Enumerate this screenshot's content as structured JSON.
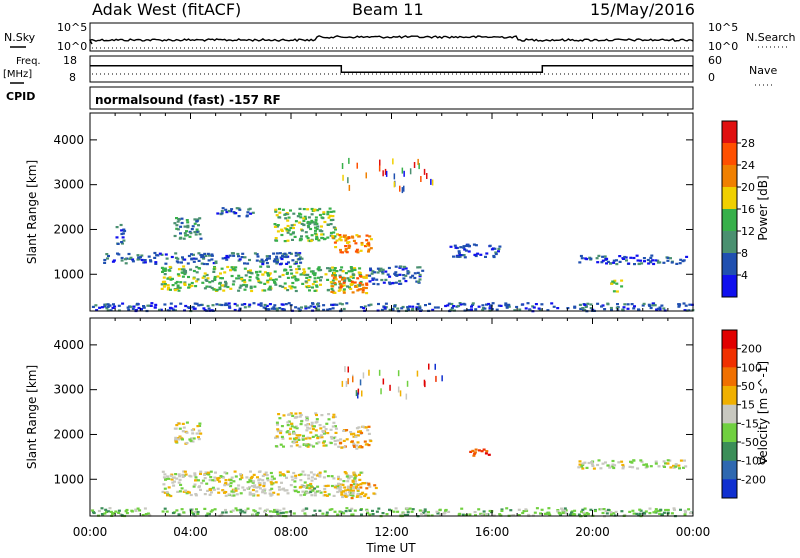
{
  "header": {
    "station": "Adak West (fitACF)",
    "beam": "Beam 11",
    "date": "15/May/2016"
  },
  "panel_labels": {
    "nsky": "N.Sky",
    "nsearch": "N.Search",
    "freq": "Freq.",
    "freq_unit": "[MHz]",
    "nave": "Nave",
    "cpid": "CPID",
    "cpid_value": "normalsound (fast) -157 RF"
  },
  "noise_panel": {
    "left_ticks": [
      "10^5",
      "10^0"
    ],
    "right_ticks": [
      "10^5",
      "10^0"
    ]
  },
  "freq_panel": {
    "left_ticks": [
      "18",
      "8"
    ],
    "right_ticks": [
      "60",
      "0"
    ],
    "freq_steps": [
      {
        "t_start": 0,
        "t_end": 10,
        "mhz": 13.5
      },
      {
        "t_start": 10,
        "t_end": 18,
        "mhz": 10.5
      },
      {
        "t_start": 18,
        "t_end": 24,
        "mhz": 13.5
      }
    ]
  },
  "chart_data": [
    {
      "type": "heatmap",
      "name": "power",
      "ylabel": "Slant Range [km]",
      "xlabel": "Time UT",
      "yticks": [
        "1000",
        "2000",
        "3000",
        "4000"
      ],
      "xticks": [
        "00:00",
        "04:00",
        "08:00",
        "12:00",
        "16:00",
        "20:00",
        "00:00"
      ],
      "xlim": [
        0,
        24
      ],
      "ylim": [
        180,
        4600
      ],
      "colorbar": {
        "label": "Power [dB]",
        "ticks": [
          "4",
          "8",
          "12",
          "16",
          "20",
          "24",
          "28"
        ],
        "colors": [
          "#1010ee",
          "#2050b0",
          "#4a9070",
          "#37b04a",
          "#f0d000",
          "#f08000",
          "#ff5000",
          "#e01010"
        ]
      },
      "regions": [
        {
          "t0": 1.0,
          "t1": 1.4,
          "r0": 1700,
          "r1": 2150,
          "level": 1
        },
        {
          "t0": 3.3,
          "t1": 4.4,
          "r0": 1800,
          "r1": 2300,
          "level": 2
        },
        {
          "t0": 5.0,
          "t1": 6.5,
          "r0": 2300,
          "r1": 2500,
          "level": 1
        },
        {
          "t0": 7.3,
          "t1": 9.8,
          "r0": 1750,
          "r1": 2500,
          "level": 3
        },
        {
          "t0": 9.5,
          "t1": 11.2,
          "r0": 1500,
          "r1": 1900,
          "level": 5
        },
        {
          "t0": 2.8,
          "t1": 10.8,
          "r0": 650,
          "r1": 1200,
          "level": 3
        },
        {
          "t0": 9.5,
          "t1": 11.0,
          "r0": 600,
          "r1": 1000,
          "level": 5
        },
        {
          "t0": 0.5,
          "t1": 8.5,
          "r0": 1250,
          "r1": 1500,
          "level": 1
        },
        {
          "t0": 11.0,
          "t1": 13.2,
          "r0": 800,
          "r1": 1200,
          "level": 1
        },
        {
          "t0": 14.3,
          "t1": 16.3,
          "r0": 1400,
          "r1": 1700,
          "level": 1
        },
        {
          "t0": 19.3,
          "t1": 23.7,
          "r0": 1250,
          "r1": 1450,
          "level": 1
        },
        {
          "t0": 20.7,
          "t1": 21.1,
          "r0": 600,
          "r1": 900,
          "level": 3
        },
        {
          "t0": 0,
          "t1": 24,
          "r0": 200,
          "r1": 380,
          "level": 1
        }
      ]
    },
    {
      "type": "heatmap",
      "name": "velocity",
      "ylabel": "Slant Range [km]",
      "xlabel": "Time UT",
      "yticks": [
        "1000",
        "2000",
        "3000",
        "4000"
      ],
      "xticks": [
        "00:00",
        "04:00",
        "08:00",
        "12:00",
        "16:00",
        "20:00",
        "00:00"
      ],
      "xlim": [
        0,
        24
      ],
      "ylim": [
        180,
        4600
      ],
      "colorbar": {
        "label": "Velocity [m s^-1]",
        "ticks": [
          "200",
          "100",
          "50",
          "15",
          "-15",
          "-50",
          "-100",
          "-200"
        ],
        "colors": [
          "#1030d0",
          "#2e68b0",
          "#3b8e58",
          "#70d040",
          "#c8c8c0",
          "#f0b000",
          "#f07000",
          "#f03000",
          "#e00000"
        ]
      },
      "regions": [
        {
          "t0": 3.3,
          "t1": 4.4,
          "r0": 1800,
          "r1": 2300,
          "level": 4
        },
        {
          "t0": 7.3,
          "t1": 9.8,
          "r0": 1750,
          "r1": 2500,
          "level": 4
        },
        {
          "t0": 9.8,
          "t1": 11.2,
          "r0": 1700,
          "r1": 2200,
          "level": 5
        },
        {
          "t0": 2.8,
          "t1": 10.8,
          "r0": 650,
          "r1": 1200,
          "level": 4
        },
        {
          "t0": 8.0,
          "t1": 9.0,
          "r0": 700,
          "r1": 900,
          "level": 3
        },
        {
          "t0": 9.8,
          "t1": 11.5,
          "r0": 600,
          "r1": 950,
          "level": 5
        },
        {
          "t0": 15.0,
          "t1": 16.0,
          "r0": 1550,
          "r1": 1700,
          "level": 7
        },
        {
          "t0": 19.3,
          "t1": 23.7,
          "r0": 1250,
          "r1": 1450,
          "level": 4
        },
        {
          "t0": 0,
          "t1": 24,
          "r0": 200,
          "r1": 380,
          "level": 3
        }
      ]
    }
  ]
}
